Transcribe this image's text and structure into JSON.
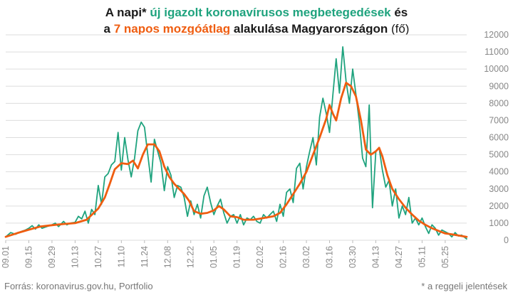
{
  "title": {
    "line1": {
      "p1": "A napi* ",
      "p2": "új igazolt koronavírusos megbetegedések",
      "p3": " és"
    },
    "line2": {
      "p1": "a ",
      "p2": "7 napos mozgóátlag",
      "p3": " alakulása Magyarországon",
      "p4": " (fő)"
    }
  },
  "source": "Forrás: koronavirus.gov.hu, Portfolio",
  "note": "* a reggeli jelentések",
  "colors": {
    "daily": "#1fa37e",
    "avg": "#ef5d10",
    "grid": "#dddddd",
    "axis_text": "#888888"
  },
  "chart_data": {
    "type": "line",
    "ylim": [
      0,
      12000
    ],
    "yticks": [
      0,
      1000,
      2000,
      3000,
      4000,
      5000,
      6000,
      7000,
      8000,
      9000,
      10000,
      11000,
      12000
    ],
    "xtick_labels": [
      "09.01",
      "09.15",
      "09.29",
      "10.13",
      "10.27",
      "11.10",
      "11.24",
      "12.08",
      "12.22",
      "01.05",
      "01.19",
      "02.02",
      "02.16",
      "03.02",
      "03.16",
      "03.30",
      "04.13",
      "04.27",
      "05.11",
      "05.25"
    ],
    "xtick_days": [
      0,
      14,
      28,
      42,
      56,
      70,
      84,
      98,
      112,
      126,
      140,
      154,
      168,
      182,
      196,
      210,
      224,
      238,
      252,
      266
    ],
    "x_day_range": [
      0,
      279
    ],
    "series": [
      {
        "key": "daily",
        "points": [
          [
            0,
            200
          ],
          [
            3,
            450
          ],
          [
            6,
            350
          ],
          [
            9,
            500
          ],
          [
            12,
            600
          ],
          [
            14,
            700
          ],
          [
            16,
            850
          ],
          [
            18,
            650
          ],
          [
            20,
            900
          ],
          [
            22,
            700
          ],
          [
            25,
            800
          ],
          [
            28,
            900
          ],
          [
            30,
            1000
          ],
          [
            32,
            800
          ],
          [
            35,
            1100
          ],
          [
            37,
            900
          ],
          [
            39,
            1000
          ],
          [
            42,
            1050
          ],
          [
            44,
            1400
          ],
          [
            46,
            1250
          ],
          [
            48,
            1700
          ],
          [
            50,
            1000
          ],
          [
            52,
            1800
          ],
          [
            54,
            1500
          ],
          [
            56,
            3200
          ],
          [
            58,
            2100
          ],
          [
            60,
            3700
          ],
          [
            62,
            3900
          ],
          [
            64,
            4400
          ],
          [
            66,
            4600
          ],
          [
            68,
            6300
          ],
          [
            70,
            4100
          ],
          [
            72,
            6000
          ],
          [
            74,
            4700
          ],
          [
            76,
            3700
          ],
          [
            78,
            4800
          ],
          [
            80,
            6400
          ],
          [
            82,
            6900
          ],
          [
            84,
            6600
          ],
          [
            86,
            5000
          ],
          [
            88,
            3400
          ],
          [
            90,
            5900
          ],
          [
            92,
            5200
          ],
          [
            94,
            4500
          ],
          [
            96,
            2900
          ],
          [
            98,
            4300
          ],
          [
            100,
            3800
          ],
          [
            102,
            2500
          ],
          [
            104,
            3200
          ],
          [
            106,
            3100
          ],
          [
            108,
            2500
          ],
          [
            110,
            1400
          ],
          [
            112,
            2300
          ],
          [
            114,
            1500
          ],
          [
            116,
            2100
          ],
          [
            118,
            1300
          ],
          [
            120,
            2600
          ],
          [
            122,
            3100
          ],
          [
            124,
            2200
          ],
          [
            126,
            1500
          ],
          [
            128,
            2000
          ],
          [
            130,
            2400
          ],
          [
            132,
            1600
          ],
          [
            134,
            1000
          ],
          [
            136,
            1400
          ],
          [
            138,
            1500
          ],
          [
            140,
            1000
          ],
          [
            142,
            1500
          ],
          [
            144,
            900
          ],
          [
            146,
            1300
          ],
          [
            148,
            1200
          ],
          [
            150,
            1400
          ],
          [
            152,
            1100
          ],
          [
            154,
            1000
          ],
          [
            156,
            1500
          ],
          [
            158,
            1300
          ],
          [
            160,
            1500
          ],
          [
            162,
            1700
          ],
          [
            164,
            1100
          ],
          [
            166,
            2100
          ],
          [
            168,
            1400
          ],
          [
            170,
            2800
          ],
          [
            172,
            3000
          ],
          [
            174,
            2200
          ],
          [
            176,
            4200
          ],
          [
            178,
            4500
          ],
          [
            180,
            3000
          ],
          [
            182,
            4300
          ],
          [
            184,
            5200
          ],
          [
            186,
            6000
          ],
          [
            188,
            4400
          ],
          [
            190,
            7200
          ],
          [
            192,
            8300
          ],
          [
            194,
            7400
          ],
          [
            196,
            6300
          ],
          [
            198,
            8500
          ],
          [
            200,
            10600
          ],
          [
            202,
            8600
          ],
          [
            204,
            11300
          ],
          [
            206,
            9300
          ],
          [
            208,
            8000
          ],
          [
            210,
            10000
          ],
          [
            212,
            8500
          ],
          [
            214,
            6900
          ],
          [
            216,
            4800
          ],
          [
            218,
            4300
          ],
          [
            220,
            7900
          ],
          [
            222,
            1900
          ],
          [
            224,
            5200
          ],
          [
            226,
            5400
          ],
          [
            228,
            4100
          ],
          [
            230,
            3100
          ],
          [
            232,
            3500
          ],
          [
            234,
            2000
          ],
          [
            236,
            3000
          ],
          [
            238,
            1300
          ],
          [
            240,
            2000
          ],
          [
            242,
            1500
          ],
          [
            244,
            2500
          ],
          [
            246,
            1000
          ],
          [
            248,
            1300
          ],
          [
            250,
            900
          ],
          [
            252,
            1300
          ],
          [
            254,
            800
          ],
          [
            256,
            400
          ],
          [
            258,
            900
          ],
          [
            260,
            700
          ],
          [
            262,
            300
          ],
          [
            264,
            600
          ],
          [
            266,
            500
          ],
          [
            268,
            400
          ],
          [
            270,
            200
          ],
          [
            272,
            450
          ],
          [
            274,
            250
          ],
          [
            276,
            300
          ],
          [
            279,
            80
          ]
        ]
      },
      {
        "key": "avg",
        "points": [
          [
            0,
            200
          ],
          [
            7,
            420
          ],
          [
            14,
            620
          ],
          [
            21,
            800
          ],
          [
            28,
            880
          ],
          [
            35,
            950
          ],
          [
            42,
            1000
          ],
          [
            49,
            1200
          ],
          [
            56,
            1850
          ],
          [
            60,
            2500
          ],
          [
            63,
            3300
          ],
          [
            66,
            4150
          ],
          [
            70,
            4500
          ],
          [
            74,
            4450
          ],
          [
            77,
            4650
          ],
          [
            80,
            4200
          ],
          [
            83,
            5000
          ],
          [
            86,
            5600
          ],
          [
            90,
            5600
          ],
          [
            93,
            5200
          ],
          [
            96,
            4300
          ],
          [
            99,
            3700
          ],
          [
            102,
            3300
          ],
          [
            105,
            3000
          ],
          [
            108,
            2700
          ],
          [
            111,
            2300
          ],
          [
            114,
            1700
          ],
          [
            118,
            1550
          ],
          [
            122,
            1600
          ],
          [
            126,
            1750
          ],
          [
            129,
            2000
          ],
          [
            132,
            1800
          ],
          [
            136,
            1400
          ],
          [
            140,
            1350
          ],
          [
            144,
            1200
          ],
          [
            150,
            1200
          ],
          [
            156,
            1300
          ],
          [
            162,
            1400
          ],
          [
            166,
            1600
          ],
          [
            170,
            2100
          ],
          [
            174,
            2700
          ],
          [
            178,
            3300
          ],
          [
            182,
            4000
          ],
          [
            186,
            5000
          ],
          [
            190,
            6000
          ],
          [
            194,
            7100
          ],
          [
            196,
            7900
          ],
          [
            198,
            7400
          ],
          [
            200,
            7000
          ],
          [
            203,
            8300
          ],
          [
            206,
            9200
          ],
          [
            209,
            9000
          ],
          [
            212,
            8400
          ],
          [
            215,
            7000
          ],
          [
            218,
            5300
          ],
          [
            221,
            5000
          ],
          [
            224,
            5200
          ],
          [
            226,
            5400
          ],
          [
            228,
            4900
          ],
          [
            231,
            3800
          ],
          [
            234,
            3000
          ],
          [
            238,
            2400
          ],
          [
            242,
            1900
          ],
          [
            246,
            1500
          ],
          [
            250,
            1150
          ],
          [
            254,
            900
          ],
          [
            258,
            700
          ],
          [
            262,
            550
          ],
          [
            266,
            400
          ],
          [
            270,
            350
          ],
          [
            274,
            280
          ],
          [
            279,
            200
          ]
        ]
      }
    ]
  }
}
